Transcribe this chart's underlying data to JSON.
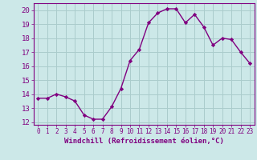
{
  "x": [
    0,
    1,
    2,
    3,
    4,
    5,
    6,
    7,
    8,
    9,
    10,
    11,
    12,
    13,
    14,
    15,
    16,
    17,
    18,
    19,
    20,
    21,
    22,
    23
  ],
  "y": [
    13.7,
    13.7,
    14.0,
    13.8,
    13.5,
    12.5,
    12.2,
    12.2,
    13.1,
    14.4,
    16.4,
    17.2,
    19.1,
    19.8,
    20.1,
    20.1,
    19.1,
    19.7,
    18.8,
    17.5,
    18.0,
    17.9,
    17.0,
    16.2
  ],
  "line_color": "#800080",
  "marker": "D",
  "marker_size": 2.2,
  "bg_color": "#cce8e8",
  "grid_color": "#aacccc",
  "xlabel": "Windchill (Refroidissement éolien,°C)",
  "xlabel_fontsize": 6.5,
  "ylim": [
    11.8,
    20.5
  ],
  "xlim": [
    -0.5,
    23.5
  ],
  "yticks": [
    12,
    13,
    14,
    15,
    16,
    17,
    18,
    19,
    20
  ],
  "xticks": [
    0,
    1,
    2,
    3,
    4,
    5,
    6,
    7,
    8,
    9,
    10,
    11,
    12,
    13,
    14,
    15,
    16,
    17,
    18,
    19,
    20,
    21,
    22,
    23
  ],
  "xtick_fontsize": 5.5,
  "ytick_fontsize": 6.5,
  "linewidth": 1.0
}
